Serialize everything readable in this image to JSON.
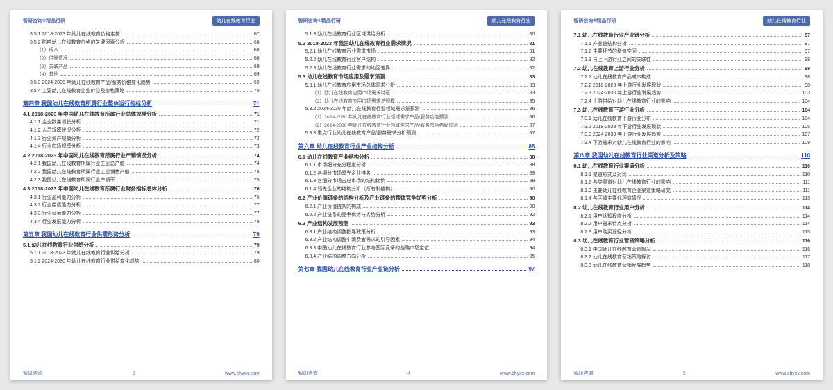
{
  "header": {
    "left": "智研咨询®精品行研",
    "right": "幼儿在线教育行业"
  },
  "footer": {
    "left": "智研咨询",
    "right": "www.chyxx.com"
  },
  "pages": [
    {
      "num": "3",
      "items": [
        {
          "lv": "h2",
          "t": "3.5.1 2018-2023 年幼儿在线教育价格走势",
          "p": "67"
        },
        {
          "lv": "h2",
          "t": "3.5.2 影响幼儿在线教育价格的关键因素分析",
          "p": "68"
        },
        {
          "lv": "h4",
          "t": "（1）成本",
          "p": "68"
        },
        {
          "lv": "h4",
          "t": "（2）供需情况",
          "p": "68"
        },
        {
          "lv": "h4",
          "t": "（3）关联产品",
          "p": "69"
        },
        {
          "lv": "h4",
          "t": "（4）其他",
          "p": "69"
        },
        {
          "lv": "h2",
          "t": "3.5.3 2024-2030 年幼儿在线教育产品/服务价格变化趋势",
          "p": "69"
        },
        {
          "lv": "h2",
          "t": "3.5.4 主要幼儿在线教育企业价位及价格策略",
          "p": "70"
        },
        {
          "lv": "chapter",
          "t": "第四章 我国幼儿在线教育所属行业整体运行指标分析",
          "p": "71"
        },
        {
          "lv": "h1",
          "t": "4.1 2018-2023 年中国幼儿在线教育所属行业总体规模分析",
          "p": "71"
        },
        {
          "lv": "h2",
          "t": "4.1.1 企业数量增长分析",
          "p": "71"
        },
        {
          "lv": "h2",
          "t": "4.1.2 人员规模状况分析",
          "p": "72"
        },
        {
          "lv": "h2",
          "t": "4.1.3 行业资产规模分析",
          "p": "72"
        },
        {
          "lv": "h2",
          "t": "4.1.4 行业市场规模分析",
          "p": "73"
        },
        {
          "lv": "h1",
          "t": "4.2 2018-2023 年中国幼儿在线教育所属行业产销情况分析",
          "p": "74"
        },
        {
          "lv": "h2",
          "t": "4.2.1 我国幼儿在线教育所属行业工业总产值",
          "p": "74"
        },
        {
          "lv": "h2",
          "t": "4.2.2 我国幼儿在线教育所属行业工业销售产值",
          "p": "75"
        },
        {
          "lv": "h2",
          "t": "4.2.3 我国幼儿在线教育所属行业产销率",
          "p": "75"
        },
        {
          "lv": "h1",
          "t": "4.3 2018-2023 年中国幼儿在线教育所属行业财务指标总体分析",
          "p": "76"
        },
        {
          "lv": "h2",
          "t": "4.3.1 行业盈利能力分析",
          "p": "76"
        },
        {
          "lv": "h2",
          "t": "4.3.2 行业偿债能力分析",
          "p": "77"
        },
        {
          "lv": "h2",
          "t": "4.3.3 行业营运能力分析",
          "p": "77"
        },
        {
          "lv": "h2",
          "t": "4.3.4 行业发展能力分析",
          "p": "78"
        },
        {
          "lv": "chapter",
          "t": "第五章 我国幼儿在线教育行业供需形势分析",
          "p": "79"
        },
        {
          "lv": "h1",
          "t": "5.1 幼儿在线教育行业供给分析",
          "p": "79"
        },
        {
          "lv": "h2",
          "t": "5.1.1 2018-2023 年幼儿在线教育行业供给分析",
          "p": "79"
        },
        {
          "lv": "h2",
          "t": "5.1.2 2024-2030 年幼儿在线教育行业供给变化趋势",
          "p": "80"
        }
      ]
    },
    {
      "num": "4",
      "items": [
        {
          "lv": "h2",
          "t": "5.1.3 幼儿在线教育行业区域供给分析",
          "p": "80"
        },
        {
          "lv": "h1",
          "t": "5.2 2018-2023 年我国幼儿在线教育行业需求情况",
          "p": "81"
        },
        {
          "lv": "h2",
          "t": "5.2.1 幼儿在线教育行业需求市场",
          "p": "81"
        },
        {
          "lv": "h2",
          "t": "5.2.2 幼儿在线教育行业客户结构",
          "p": "82"
        },
        {
          "lv": "h2",
          "t": "5.2.3 幼儿在线教育行业需求的地区差异",
          "p": "82"
        },
        {
          "lv": "h1",
          "t": "5.3 幼儿在线教育市场应用及需求预测",
          "p": "83"
        },
        {
          "lv": "h2",
          "t": "5.3.1 幼儿在线教育应用市场总体需求分析",
          "p": "83"
        },
        {
          "lv": "h4",
          "t": "（1）幼儿在线教育应用市场需求特征",
          "p": "83"
        },
        {
          "lv": "h4",
          "t": "（2）幼儿在线教育应用市场需求总规模",
          "p": "85"
        },
        {
          "lv": "h2",
          "t": "5.3.2 2024-2030 年幼儿在线教育行业领域需求量预测",
          "p": "86"
        },
        {
          "lv": "h4",
          "t": "（1）2024-2030 年幼儿在线教育行业领域需求产品/服务功能预测",
          "p": "86"
        },
        {
          "lv": "h4",
          "t": "（2）2024-2030 年幼儿在线教育行业领域需求产品/服务市场格局预测",
          "p": "87"
        },
        {
          "lv": "h2",
          "t": "5.3.3 重点行业幼儿在线教育产品/服务需求分析预测",
          "p": "87"
        },
        {
          "lv": "chapter",
          "t": "第六章 幼儿在线教育行业产业结构分析",
          "p": "88"
        },
        {
          "lv": "h1",
          "t": "6.1 幼儿在线教育产业结构分析",
          "p": "88"
        },
        {
          "lv": "h2",
          "t": "6.1.1 市场细分充分程度分析",
          "p": "88"
        },
        {
          "lv": "h2",
          "t": "6.1.2 各细分市场领先企业排名",
          "p": "89"
        },
        {
          "lv": "h2",
          "t": "6.1.3 各细分市场占总市场的结构比例",
          "p": "89"
        },
        {
          "lv": "h2",
          "t": "6.1.4 领先企业的结构分析（所有制结构）",
          "p": "90"
        },
        {
          "lv": "h1",
          "t": "6.2 产业价值链条的结构分析及产业链条的整体竞争优势分析",
          "p": "90"
        },
        {
          "lv": "h2",
          "t": "6.2.1 产业价值链条的构成",
          "p": "90"
        },
        {
          "lv": "h2",
          "t": "6.2.2 产业链条的竞争优势与劣势分析",
          "p": "92"
        },
        {
          "lv": "h1",
          "t": "6.3 产业结构发展预测",
          "p": "93"
        },
        {
          "lv": "h2",
          "t": "6.3.1 产业结构调整指导政策分析",
          "p": "93"
        },
        {
          "lv": "h2",
          "t": "6.3.2 产业结构调整中消费者需求的引导因素",
          "p": "94"
        },
        {
          "lv": "h2",
          "t": "6.3.3 中国幼儿在线教育行业参与国际竞争的战略市场定位",
          "p": "94"
        },
        {
          "lv": "h2",
          "t": "6.3.4 产业结构调整方向分析",
          "p": "95"
        },
        {
          "lv": "chapter",
          "t": "第七章 我国幼儿在线教育行业产业链分析",
          "p": "97"
        }
      ]
    },
    {
      "num": "5",
      "items": [
        {
          "lv": "h1",
          "t": "7.1 幼儿在线教育行业产业链分析",
          "p": "97"
        },
        {
          "lv": "h2",
          "t": "7.1.1 产业链结构分析",
          "p": "97"
        },
        {
          "lv": "h2",
          "t": "7.1.2 主要环节的增值空间",
          "p": "97"
        },
        {
          "lv": "h2",
          "t": "7.1.3 与上下游行业之间的关联性",
          "p": "98"
        },
        {
          "lv": "h1",
          "t": "7.2 幼儿在线教育上游行业分析",
          "p": "98"
        },
        {
          "lv": "h2",
          "t": "7.2.1 幼儿在线教育产品成本构成",
          "p": "98"
        },
        {
          "lv": "h2",
          "t": "7.2.2 2018-2023 年上游行业发展现状",
          "p": "98"
        },
        {
          "lv": "h2",
          "t": "7.2.3 2024-2030 年上游行业发展趋势",
          "p": "103"
        },
        {
          "lv": "h2",
          "t": "7.2.4 上游供给对幼儿在线教育行业的影响",
          "p": "104"
        },
        {
          "lv": "h1",
          "t": "7.3 幼儿在线教育下游行业分析",
          "p": "104"
        },
        {
          "lv": "h2",
          "t": "7.3.1 幼儿在线教育下游行业分布",
          "p": "104"
        },
        {
          "lv": "h2",
          "t": "7.3.2 2018-2023 年下游行业发展现状",
          "p": "105"
        },
        {
          "lv": "h2",
          "t": "7.3.3 2024-2030 年下游行业发展趋势",
          "p": "107"
        },
        {
          "lv": "h2",
          "t": "7.3.4 下游需求对幼儿在线教育行业的影响",
          "p": "109"
        },
        {
          "lv": "chapter",
          "t": "第八章 我国幼儿在线教育行业渠道分析及策略",
          "p": "110"
        },
        {
          "lv": "h1",
          "t": "8.1 幼儿在线教育行业渠道分析",
          "p": "110"
        },
        {
          "lv": "h2",
          "t": "8.1.1 渠道形式及对比",
          "p": "110"
        },
        {
          "lv": "h2",
          "t": "8.1.2 各类渠道对幼儿在线教育行业的影响",
          "p": "111"
        },
        {
          "lv": "h2",
          "t": "8.1.3 主要幼儿在线教育企业渠道策略研究",
          "p": "111"
        },
        {
          "lv": "h2",
          "t": "8.1.4 各区域主要代理商情况",
          "p": "113"
        },
        {
          "lv": "h1",
          "t": "8.2 幼儿在线教育行业用户分析",
          "p": "114"
        },
        {
          "lv": "h2",
          "t": "8.2.1 用户认知程度分析",
          "p": "114"
        },
        {
          "lv": "h2",
          "t": "8.2.2 用户需求特点分析",
          "p": "114"
        },
        {
          "lv": "h2",
          "t": "8.2.3 用户购买途径分析",
          "p": "115"
        },
        {
          "lv": "h1",
          "t": "8.3 幼儿在线教育行业营销策略分析",
          "p": "116"
        },
        {
          "lv": "h2",
          "t": "8.3.1 中国幼儿在线教育营销概况",
          "p": "116"
        },
        {
          "lv": "h2",
          "t": "8.3.2 幼儿在线教育营销策略探讨",
          "p": "117"
        },
        {
          "lv": "h2",
          "t": "8.3.3 幼儿在线教育营销发展趋势",
          "p": "118"
        }
      ]
    }
  ]
}
